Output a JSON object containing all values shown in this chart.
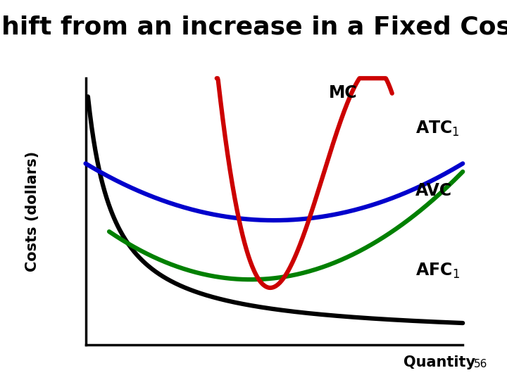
{
  "title": "Shift from an increase in a Fixed Cost",
  "title_fontsize": 26,
  "title_fontweight": "bold",
  "ylabel": "Costs (dollars)",
  "ylabel_fontsize": 15,
  "ylabel_fontweight": "bold",
  "xlabel": "Quantity",
  "xlabel_fontsize": 15,
  "xlabel_fontweight": "bold",
  "slide_number": "56",
  "background_color": "#ffffff",
  "mc_color": "#cc0000",
  "atc_color": "#0000cc",
  "avc_color": "#008000",
  "afc_color": "#000000",
  "label_color": "#000000",
  "label_fontsize": 17,
  "label_fontweight": "bold",
  "curve_lw": 4.5
}
